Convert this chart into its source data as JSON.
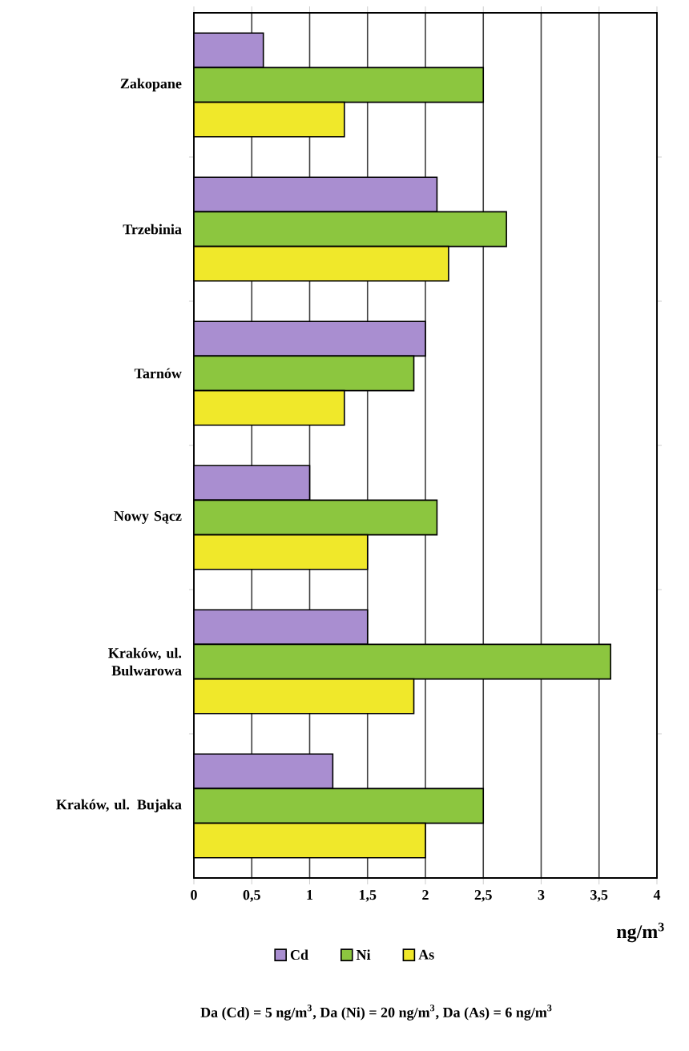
{
  "chart_data": {
    "type": "bar",
    "orientation": "horizontal",
    "categories": [
      "Zakopane",
      "Trzebinia",
      "Tarnów",
      "Nowy Sącz",
      "Kraków, ul. Bulwarowa",
      "Kraków, ul. Bujaka"
    ],
    "series": [
      {
        "name": "Cd",
        "color": "#a98ed0",
        "values": [
          0.6,
          2.1,
          2.0,
          1.0,
          1.5,
          1.2
        ]
      },
      {
        "name": "Ni",
        "color": "#8cc63f",
        "values": [
          2.5,
          2.7,
          1.9,
          2.1,
          3.6,
          2.5
        ]
      },
      {
        "name": "As",
        "color": "#f0e82a",
        "values": [
          1.3,
          2.2,
          1.3,
          1.5,
          1.9,
          2.0
        ]
      }
    ],
    "xlim": [
      0,
      4
    ],
    "xticks": [
      0,
      {
        "value": 0.5,
        "label": "0,5"
      },
      1,
      {
        "value": 1.5,
        "label": "1,5"
      },
      2,
      {
        "value": 2.5,
        "label": "2,5"
      },
      3,
      {
        "value": 3.5,
        "label": "3,5"
      },
      4
    ],
    "xlabel": "ng/m$^{3}$",
    "grid": "x",
    "legend": "bottom",
    "annotations": [
      "Da (Cd) = 5 ng/m$^{3}$,  Da (Ni) = 20 ng/m$^{3}$,  Da (As) = 6 ng/m$^{3}$"
    ]
  }
}
